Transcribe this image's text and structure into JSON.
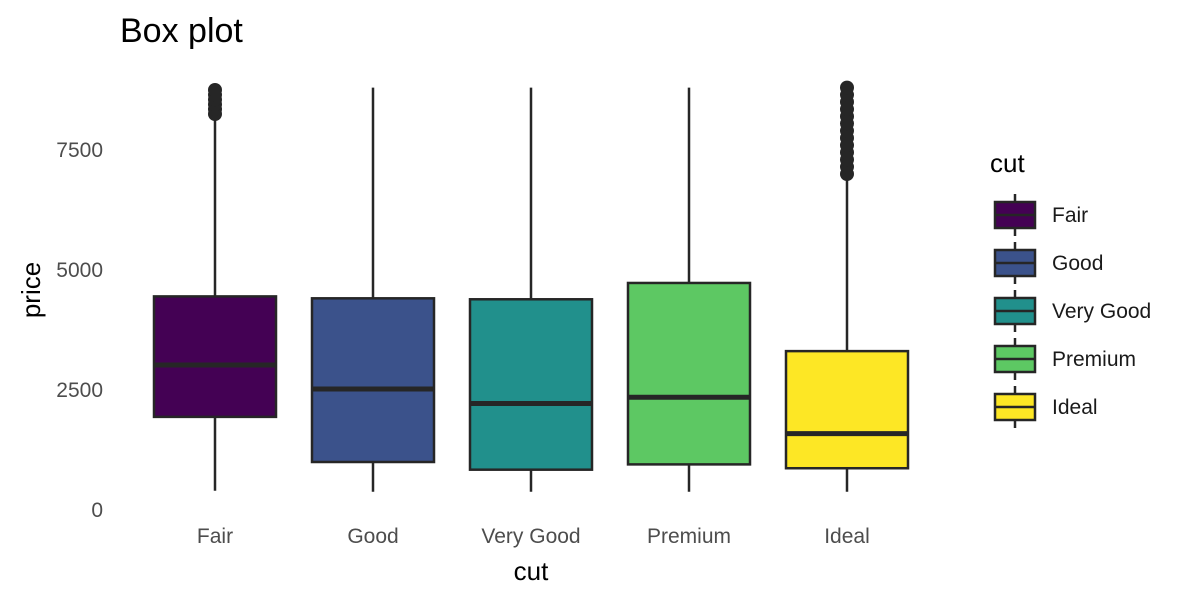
{
  "chart_data": {
    "type": "box",
    "title": "Box plot",
    "xlabel": "cut",
    "ylabel": "price",
    "ylim": [
      0,
      8800
    ],
    "yticks": [
      0,
      2500,
      5000,
      7500
    ],
    "ytick_labels": [
      "0",
      "2500",
      "5000",
      "7500"
    ],
    "grid": false,
    "legend": {
      "title": "cut",
      "placement": "right"
    },
    "categories": [
      "Fair",
      "Good",
      "Very Good",
      "Premium",
      "Ideal"
    ],
    "boxes": [
      {
        "name": "Fair",
        "color": "#440154",
        "whisker_low": 400,
        "q1": 1940,
        "median": 3020,
        "q3": 4450,
        "whisker_high": 8200,
        "outliers": [
          8250,
          8350,
          8450,
          8550,
          8650,
          8750
        ]
      },
      {
        "name": "Good",
        "color": "#3B528B",
        "whisker_low": 380,
        "q1": 1000,
        "median": 2520,
        "q3": 4410,
        "whisker_high": 8800,
        "outliers": []
      },
      {
        "name": "Very Good",
        "color": "#21908C",
        "whisker_low": 380,
        "q1": 840,
        "median": 2220,
        "q3": 4390,
        "whisker_high": 8800,
        "outliers": []
      },
      {
        "name": "Premium",
        "color": "#5DC863",
        "whisker_low": 380,
        "q1": 950,
        "median": 2350,
        "q3": 4730,
        "whisker_high": 8800,
        "outliers": []
      },
      {
        "name": "Ideal",
        "color": "#FDE725",
        "whisker_low": 380,
        "q1": 870,
        "median": 1590,
        "q3": 3310,
        "whisker_high": 6950,
        "outliers": [
          7000,
          7150,
          7300,
          7450,
          7600,
          7750,
          7900,
          8050,
          8200,
          8350,
          8500,
          8650,
          8800
        ]
      }
    ]
  }
}
